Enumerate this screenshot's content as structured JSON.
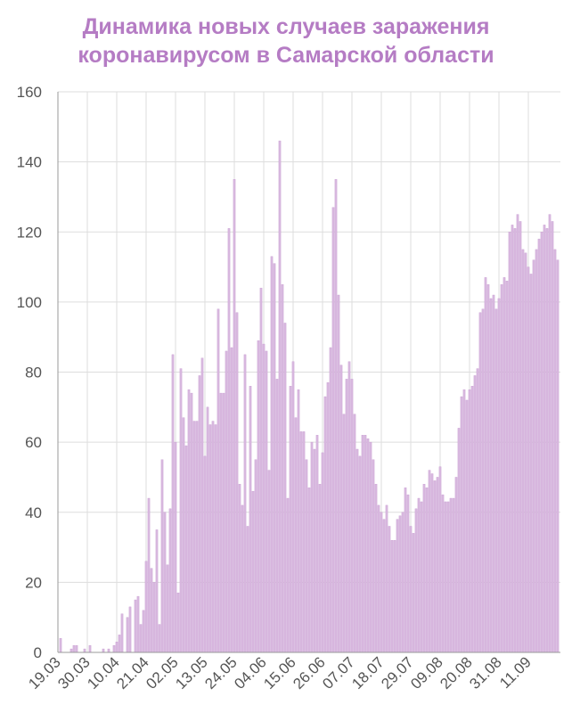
{
  "chart_data": {
    "type": "bar",
    "title": [
      "Динамика новых случаев заражения",
      "коронавирусом в Самарской области"
    ],
    "categories": [
      "19.03",
      null,
      null,
      null,
      null,
      null,
      null,
      null,
      null,
      null,
      null,
      "30.03",
      null,
      null,
      null,
      null,
      null,
      null,
      null,
      null,
      null,
      null,
      "10.04",
      null,
      null,
      null,
      null,
      null,
      null,
      null,
      null,
      null,
      null,
      "21.04",
      null,
      null,
      null,
      null,
      null,
      null,
      null,
      null,
      null,
      null,
      "02.05",
      null,
      null,
      null,
      null,
      null,
      null,
      null,
      null,
      null,
      null,
      "13.05",
      null,
      null,
      null,
      null,
      null,
      null,
      null,
      null,
      null,
      null,
      "24.05",
      null,
      null,
      null,
      null,
      null,
      null,
      null,
      null,
      null,
      null,
      "04.06",
      null,
      null,
      null,
      null,
      null,
      null,
      null,
      null,
      null,
      null,
      "15.06",
      null,
      null,
      null,
      null,
      null,
      null,
      null,
      null,
      null,
      null,
      "26.06",
      null,
      null,
      null,
      null,
      null,
      null,
      null,
      null,
      null,
      null,
      "07.07",
      null,
      null,
      null,
      null,
      null,
      null,
      null,
      null,
      null,
      null,
      "18.07",
      null,
      null,
      null,
      null,
      null,
      null,
      null,
      null,
      null,
      null,
      "29.07",
      null,
      null,
      null,
      null,
      null,
      null,
      null,
      null,
      null,
      null,
      "09.08",
      null,
      null,
      null,
      null,
      null,
      null,
      null,
      null,
      null,
      null,
      "20.08",
      null,
      null,
      null,
      null,
      null,
      null,
      null,
      null,
      null,
      null,
      "31.08",
      null,
      null,
      null,
      null,
      null,
      null,
      null,
      null,
      null,
      null,
      "11.09",
      null,
      null,
      null,
      null,
      null,
      null,
      null,
      null,
      null,
      null,
      null
    ],
    "values": [
      0,
      4,
      0,
      0,
      0,
      1,
      2,
      2,
      0,
      0,
      1,
      0,
      2,
      0,
      0,
      0,
      0,
      1,
      0,
      1,
      0,
      2,
      3,
      5,
      11,
      0,
      10,
      13,
      0,
      15,
      16,
      8,
      12,
      26,
      44,
      24,
      20,
      35,
      8,
      55,
      40,
      25,
      41,
      85,
      60,
      17,
      81,
      67,
      59,
      75,
      74,
      66,
      66,
      79,
      84,
      56,
      70,
      65,
      66,
      65,
      98,
      74,
      74,
      86,
      121,
      87,
      135,
      97,
      48,
      42,
      85,
      36,
      76,
      46,
      55,
      89,
      104,
      88,
      86,
      52,
      113,
      111,
      78,
      146,
      105,
      94,
      44,
      76,
      83,
      67,
      75,
      63,
      63,
      55,
      47,
      60,
      58,
      62,
      48,
      57,
      73,
      77,
      87,
      127,
      135,
      102,
      82,
      68,
      78,
      83,
      78,
      68,
      58,
      56,
      62,
      62,
      61,
      60,
      55,
      48,
      42,
      40,
      38,
      42,
      36,
      32,
      32,
      38,
      39,
      40,
      47,
      45,
      36,
      34,
      41,
      44,
      43,
      48,
      47,
      52,
      51,
      49,
      50,
      53,
      45,
      43,
      43,
      44,
      44,
      50,
      64,
      73,
      75,
      72,
      75,
      76,
      79,
      81,
      97,
      98,
      107,
      105,
      101,
      102,
      98,
      101,
      105,
      107,
      106,
      120,
      122,
      121,
      125,
      123,
      115,
      114,
      110,
      108,
      112,
      115,
      118,
      120,
      122,
      121,
      125,
      123,
      115,
      112
    ],
    "color": "#d9b8e0",
    "ylim": [
      0,
      160
    ],
    "yticks": [
      0,
      20,
      40,
      60,
      80,
      100,
      120,
      140,
      160
    ],
    "grid": true
  }
}
